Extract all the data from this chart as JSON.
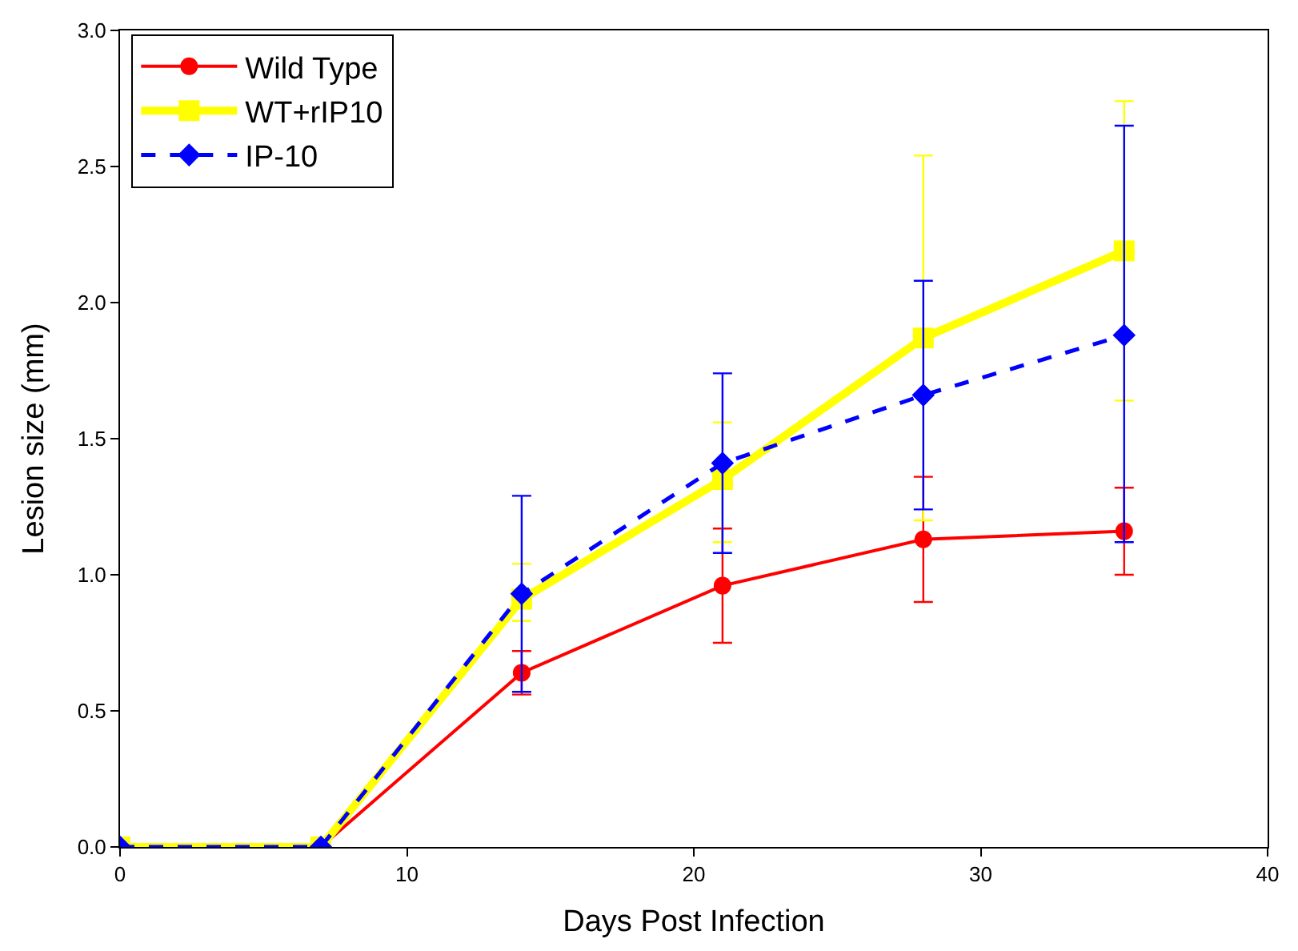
{
  "chart_data": {
    "type": "line",
    "xlabel": "Days Post Infection",
    "ylabel": "Lesion size (mm)",
    "x": [
      0,
      7,
      14,
      21,
      28,
      35
    ],
    "xlim": [
      0,
      40
    ],
    "xticks": [
      0,
      10,
      20,
      30,
      40
    ],
    "ylim": [
      0,
      3
    ],
    "yticks": [
      {
        "value": 0,
        "label": "0.0"
      },
      {
        "value": 0.5,
        "label": "0.5"
      },
      {
        "value": 1,
        "label": "1.0"
      },
      {
        "value": 1.5,
        "label": "1.5"
      },
      {
        "value": 2,
        "label": "2.0"
      },
      {
        "value": 2.5,
        "label": "2.5"
      },
      {
        "value": 3,
        "label": "3.0"
      }
    ],
    "legend": "top left",
    "series": [
      {
        "name": "Wild Type",
        "color": "#ff0000",
        "marker": "circle",
        "line_style": "solid",
        "values": [
          0,
          0,
          0.64,
          0.96,
          1.13,
          1.16
        ],
        "errors": [
          null,
          null,
          [
            0.56,
            0.72
          ],
          [
            0.75,
            1.17
          ],
          [
            0.9,
            1.36
          ],
          [
            1.0,
            1.32
          ]
        ]
      },
      {
        "name": "WT+rIP10",
        "color": "#ffff00",
        "marker": "square",
        "line_style": "solid",
        "values": [
          0,
          0,
          0.91,
          1.35,
          1.87,
          2.19
        ],
        "errors": [
          null,
          null,
          [
            0.83,
            1.04
          ],
          [
            1.12,
            1.56
          ],
          [
            1.2,
            2.54
          ],
          [
            1.64,
            2.74
          ]
        ]
      },
      {
        "name": "IP-10",
        "color": "#0000ff",
        "marker": "diamond",
        "line_style": "dashed",
        "values": [
          0,
          0,
          0.93,
          1.41,
          1.66,
          1.88
        ],
        "errors": [
          null,
          null,
          [
            0.57,
            1.29
          ],
          [
            1.08,
            1.74
          ],
          [
            1.24,
            2.08
          ],
          [
            1.12,
            2.65
          ]
        ]
      }
    ]
  }
}
